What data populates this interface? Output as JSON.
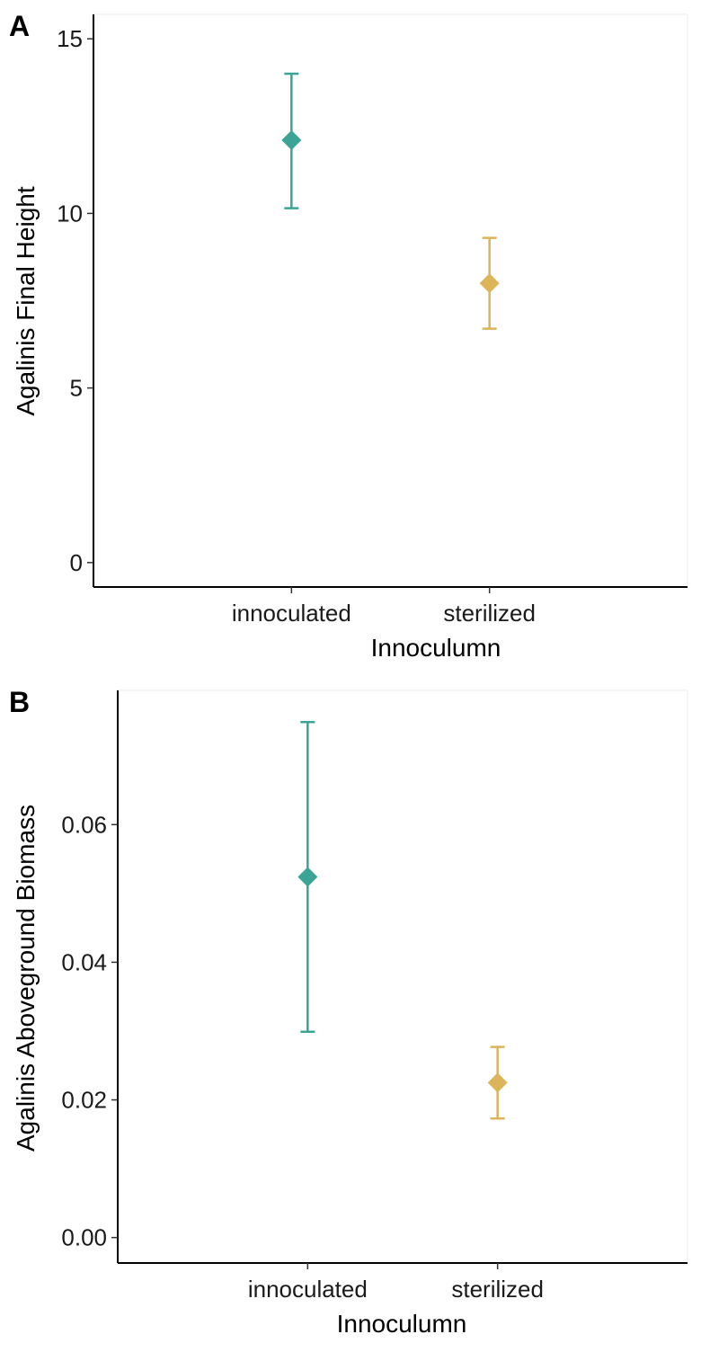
{
  "chart_data": [
    {
      "panel_label": "A",
      "type": "scatter",
      "subtype": "point with error bars",
      "xlabel": "Innoculumn",
      "ylabel": "Agalinis Final Height",
      "categories": [
        "innoculated",
        "sterilized"
      ],
      "points": [
        {
          "category": "innoculated",
          "value": 12.1,
          "lower": 10.15,
          "upper": 14.0,
          "color": "#3aa596"
        },
        {
          "category": "sterilized",
          "value": 8.0,
          "lower": 6.7,
          "upper": 9.3,
          "color": "#dcb55a"
        }
      ],
      "ylim": [
        -0.7,
        15.7
      ],
      "yticks": [
        0,
        5,
        10,
        15
      ],
      "ytick_labels": [
        "0",
        "5",
        "10",
        "15"
      ],
      "marker": "diamond",
      "grid": false,
      "legend": "none"
    },
    {
      "panel_label": "B",
      "type": "scatter",
      "subtype": "point with error bars",
      "xlabel": "Innoculumn",
      "ylabel": "Agalinis Aboveground Biomass",
      "categories": [
        "innoculated",
        "sterilized"
      ],
      "points": [
        {
          "category": "innoculated",
          "value": 0.0524,
          "lower": 0.0299,
          "upper": 0.0749,
          "color": "#3aa596"
        },
        {
          "category": "sterilized",
          "value": 0.0225,
          "lower": 0.0173,
          "upper": 0.0277,
          "color": "#dcb55a"
        }
      ],
      "ylim": [
        -0.0037,
        0.0795
      ],
      "yticks": [
        0.0,
        0.02,
        0.04,
        0.06
      ],
      "ytick_labels": [
        "0.00",
        "0.02",
        "0.04",
        "0.06"
      ],
      "marker": "diamond",
      "grid": false,
      "legend": "none"
    }
  ]
}
